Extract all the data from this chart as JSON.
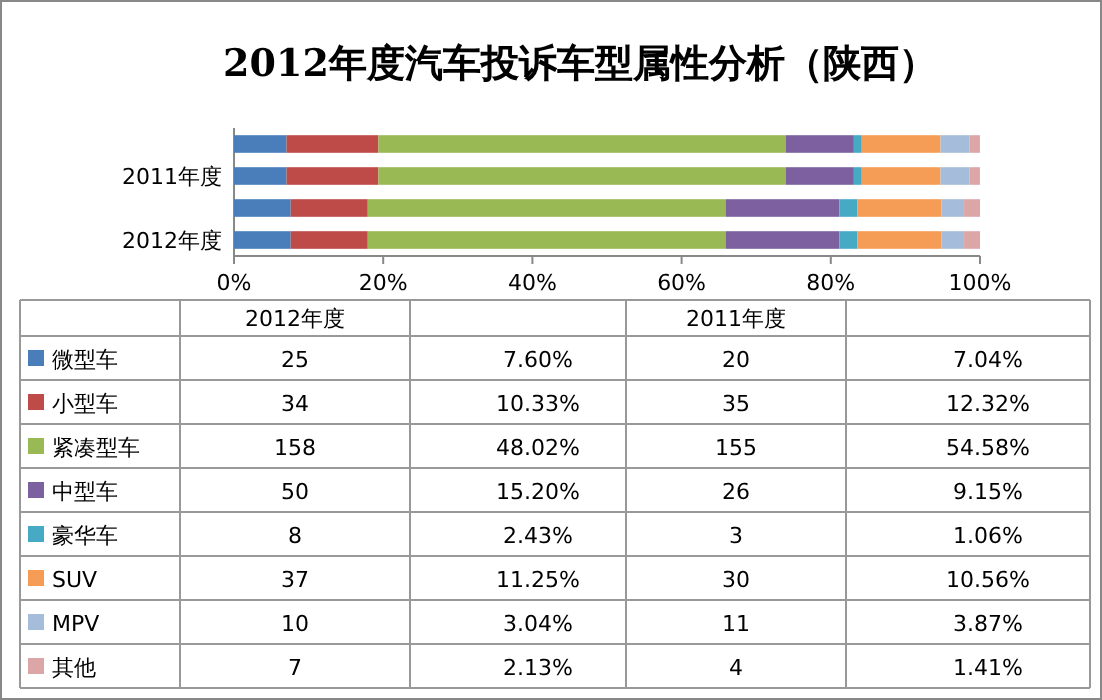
{
  "chart_data": [
    {
      "type": "bar",
      "title": "2012年度汽车投诉车型属性分析（陕西）",
      "orientation": "horizontal",
      "stacked": true,
      "legend": "bottom",
      "categories": [
        null,
        "2011年度",
        null,
        "2012年度"
      ],
      "xlim": [
        0,
        100
      ],
      "xticks": [
        {
          "value": 0,
          "label": "0%"
        },
        {
          "value": 20,
          "label": "20%"
        },
        {
          "value": 40,
          "label": "40%"
        },
        {
          "value": 60,
          "label": "60%"
        },
        {
          "value": 80,
          "label": "80%"
        },
        {
          "value": 100,
          "label": "100%"
        }
      ],
      "series": [
        {
          "name": "微型车",
          "color": "#4a7ebb",
          "values": [
            7.04,
            7.04,
            7.6,
            7.6
          ]
        },
        {
          "name": "小型车",
          "color": "#be4b48",
          "values": [
            12.32,
            12.32,
            10.33,
            10.33
          ]
        },
        {
          "name": "紧凑型车",
          "color": "#98b954",
          "values": [
            54.58,
            54.58,
            48.02,
            48.02
          ]
        },
        {
          "name": "中型车",
          "color": "#7d60a0",
          "values": [
            9.15,
            9.15,
            15.2,
            15.2
          ]
        },
        {
          "name": "豪华车",
          "color": "#46aac5",
          "values": [
            1.06,
            1.06,
            2.43,
            2.43
          ]
        },
        {
          "name": "SUV",
          "color": "#f59d56",
          "values": [
            10.56,
            10.56,
            11.25,
            11.25
          ]
        },
        {
          "name": "MPV",
          "color": "#a5bddb",
          "values": [
            3.87,
            3.87,
            3.04,
            3.04
          ]
        },
        {
          "name": "其他",
          "color": "#dba6a5",
          "values": [
            1.41,
            1.41,
            2.13,
            2.13
          ]
        }
      ]
    },
    {
      "type": "other",
      "annotations": [
        "2012年度",
        "2011年度",
        "25",
        "7.60%",
        "20",
        "7.04%",
        "34",
        "10.33%",
        "35",
        "12.32%",
        "158",
        "48.02%",
        "155",
        "54.58%",
        "50",
        "15.20%",
        "26",
        "9.15%",
        "8",
        "2.43%",
        "3",
        "1.06%",
        "37",
        "11.25%",
        "30",
        "10.56%",
        "10",
        "3.04%",
        "11",
        "3.87%",
        "7",
        "2.13%",
        "4",
        "1.41%"
      ]
    }
  ]
}
